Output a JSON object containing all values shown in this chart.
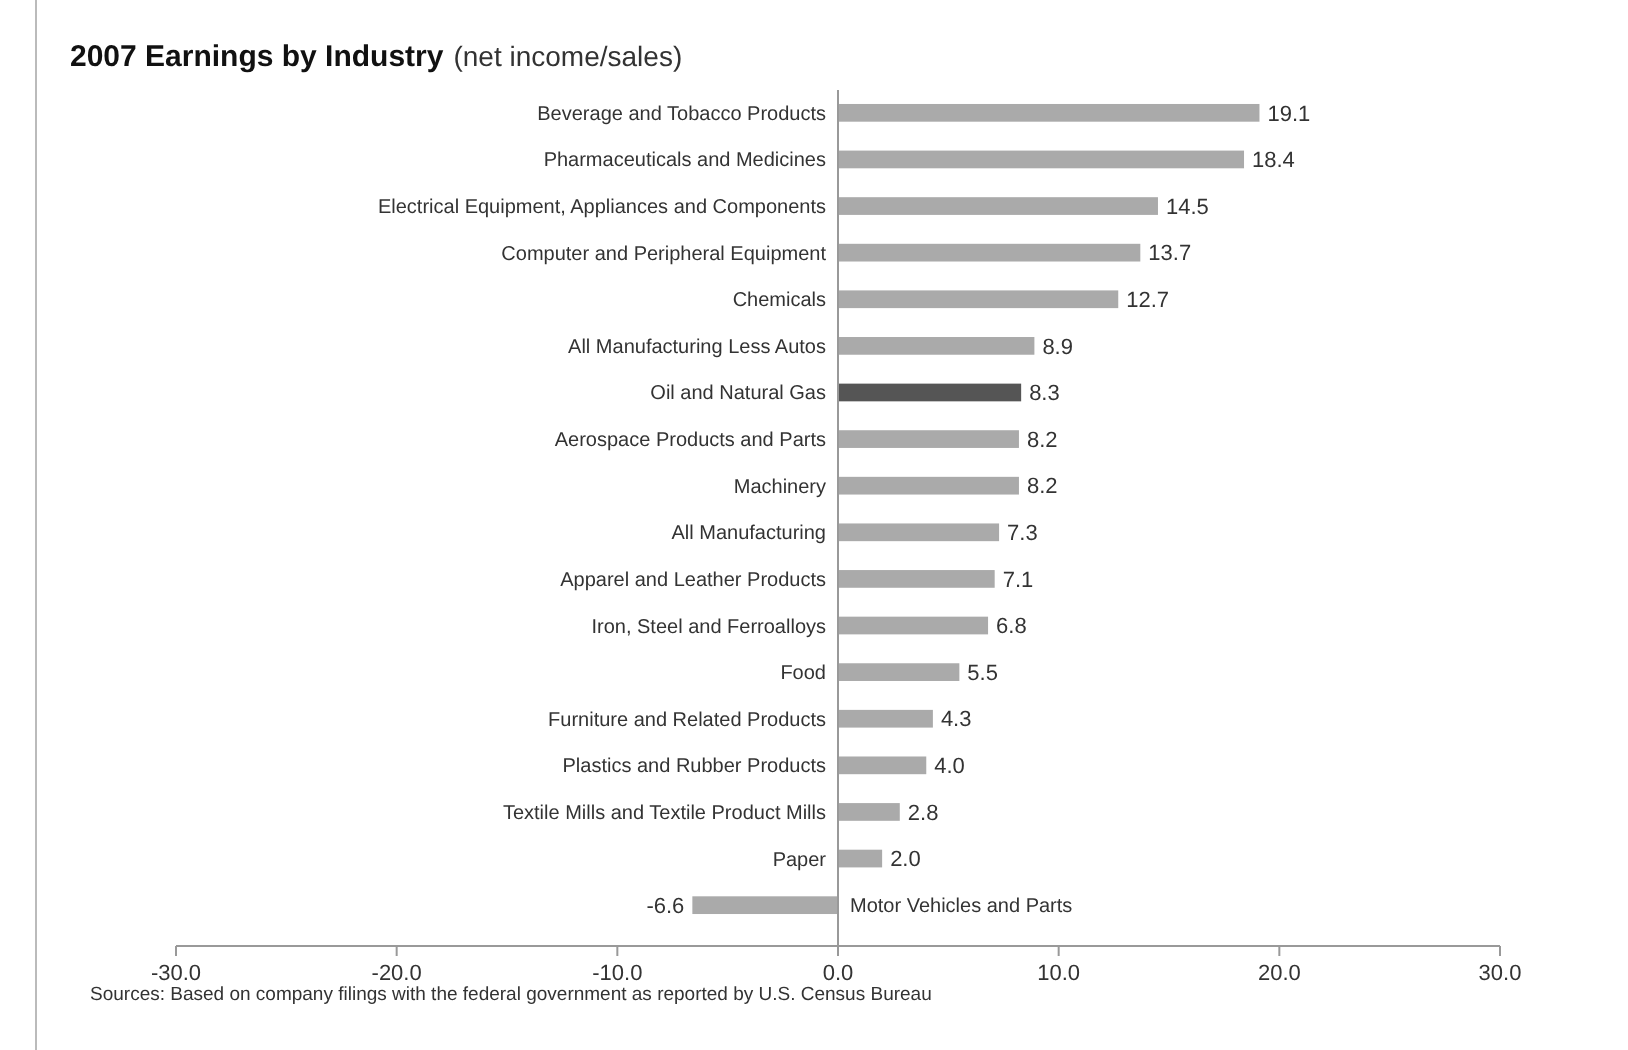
{
  "chart_data": {
    "type": "bar",
    "orientation": "horizontal",
    "title": "2007 Earnings by Industry",
    "subtitle": "(net income/sales)",
    "categories": [
      "Beverage and Tobacco Products",
      "Pharmaceuticals and Medicines",
      "Electrical Equipment, Appliances and Components",
      "Computer and Peripheral Equipment",
      "Chemicals",
      "All Manufacturing Less Autos",
      "Oil and Natural Gas",
      "Aerospace Products and Parts",
      "Machinery",
      "All Manufacturing",
      "Apparel and Leather Products",
      "Iron, Steel and Ferroalloys",
      "Food",
      "Furniture and Related Products",
      "Plastics and Rubber Products",
      "Textile Mills and Textile Product Mills",
      "Paper",
      "Motor Vehicles and Parts"
    ],
    "values": [
      19.1,
      18.4,
      14.5,
      13.7,
      12.7,
      8.9,
      8.3,
      8.2,
      8.2,
      7.3,
      7.1,
      6.8,
      5.5,
      4.3,
      4.0,
      2.8,
      2.0,
      -6.6
    ],
    "value_labels": [
      "19.1",
      "18.4",
      "14.5",
      "13.7",
      "12.7",
      "8.9",
      "8.3",
      "8.2",
      "8.2",
      "7.3",
      "7.1",
      "6.8",
      "5.5",
      "4.3",
      "4.0",
      "2.8",
      "2.0",
      "-6.6"
    ],
    "colors": [
      "#aaaaaa",
      "#aaaaaa",
      "#aaaaaa",
      "#aaaaaa",
      "#aaaaaa",
      "#aaaaaa",
      "#555555",
      "#aaaaaa",
      "#aaaaaa",
      "#aaaaaa",
      "#aaaaaa",
      "#aaaaaa",
      "#aaaaaa",
      "#aaaaaa",
      "#aaaaaa",
      "#aaaaaa",
      "#aaaaaa",
      "#aaaaaa"
    ],
    "xlim": [
      -30,
      30
    ],
    "xticks": [
      {
        "value": -30,
        "label": "-30.0"
      },
      {
        "value": -20,
        "label": "-20.0"
      },
      {
        "value": -10,
        "label": "-10.0"
      },
      {
        "value": 0,
        "label": "0.0"
      },
      {
        "value": 10,
        "label": "10.0"
      },
      {
        "value": 20,
        "label": "20.0"
      },
      {
        "value": 30,
        "label": "30.0"
      }
    ],
    "annotations": [
      "Sources: Based on company filings with the federal government as reported by U.S. Census Bureau"
    ],
    "grid": false
  }
}
